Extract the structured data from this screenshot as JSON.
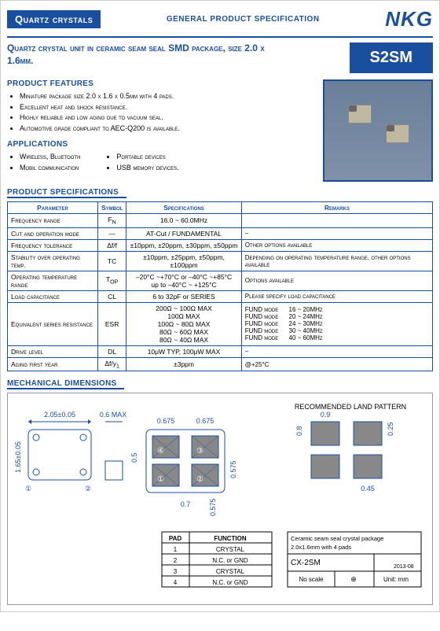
{
  "header": {
    "left": "Quartz crystals",
    "mid": "GENERAL PRODUCT SPECIFICATION",
    "brand": "NKG"
  },
  "title": "Quartz crystal unit in ceramic seam seal SMD package, size 2.0 x 1.6mm.",
  "partcode": "S2SM",
  "features_h": "PRODUCT FEATURES",
  "features": [
    "Miniature  package size 2.0 x 1.6 x 0.5mm with 4 pads.",
    "Excellent heat and shock resistance.",
    "Highly reliable and low aging due to vacuum seal.",
    "Automotive grade compliant to AEC-Q200 is available."
  ],
  "apps_h": "APPLICATIONS",
  "apps_col1": [
    "Wireless, Bluetooth",
    "Mobil communication"
  ],
  "apps_col2": [
    "Portable devices",
    "USB memory devices."
  ],
  "spec_h": "PRODUCT SPECIFICATIONS",
  "spec_cols": {
    "p": "Parameter",
    "s": "Symbol",
    "v": "Specifications",
    "r": "Remarks"
  },
  "spec_rows": [
    {
      "p": "Frequency range",
      "s": "F<sub>N</sub>",
      "v": "16.0 ~ 60.0MHz",
      "r": ""
    },
    {
      "p": "Cut and operation mode",
      "s": "—",
      "v": "AT-Cut / FUNDAMENTAL",
      "r": "–"
    },
    {
      "p": "Frequency tolerance",
      "s": "Δf/f",
      "v": "±10ppm, ±20ppm, ±30ppm, ±50ppm",
      "r": "Other options available"
    },
    {
      "p": "Stability over operating temp.",
      "s": "TC",
      "v": "±10ppm, ±25ppm, ±50ppm, ±100ppm",
      "r": "Depending on operating temperature range, other options available"
    },
    {
      "p": "Operating temperature range",
      "s": "T<sub>OP</sub>",
      "v": "–20°C ~+70°C  or  –40°C ~+85°C<br>up to –40°C ~ +125°C",
      "r": "Options available"
    },
    {
      "p": "Load capacitance",
      "s": "CL",
      "v": "6 to 32pF or SERIES",
      "r": "Please specify load capacitance"
    },
    {
      "p": "Equivalent series resistance",
      "s": "ESR",
      "v": "200Ω ~ 100Ω MAX<br>100Ω MAX<br>100Ω ~ 80Ω MAX<br>80Ω ~ 60Ω MAX<br>80Ω ~ 40Ω MAX",
      "r": "FUND mode &nbsp;&nbsp;&nbsp;&nbsp; 16 ~ 20MHz<br>FUND mode &nbsp;&nbsp;&nbsp;&nbsp; 20 ~ 24MHz<br>FUND mode &nbsp;&nbsp;&nbsp;&nbsp; 24 ~ 30MHz<br>FUND mode &nbsp;&nbsp;&nbsp;&nbsp; 30 ~ 40MHz<br>FUND mode &nbsp;&nbsp;&nbsp;&nbsp; 40 ~ 60MHz"
    },
    {
      "p": "Drive level",
      "s": "DL",
      "v": "10μW TYP,  100μW MAX",
      "r": "–"
    },
    {
      "p": "Aging first year",
      "s": "Δf/y<sub>1</sub>",
      "v": "±3ppm",
      "r": "@+25°C"
    }
  ],
  "mech_h": "MECHANICAL DIMENSIONS",
  "mech": {
    "rec_label": "RECOMMENDED LAND PATTERN",
    "dims": {
      "w": "2.05±0.05",
      "h": "1.65±0.05",
      "th": "0.6 MAX",
      "pad_w": "0.675",
      "pad_gap": "0.7",
      "pad_h": "0.575",
      "pad_vgap": "0.5",
      "lp_w": "0.9",
      "lp_h": "0.8",
      "lp_sx": "0.45",
      "lp_sy": "0.25"
    },
    "pad_table": {
      "cols": [
        "PAD",
        "FUNCTION"
      ],
      "rows": [
        [
          "1",
          "CRYSTAL"
        ],
        [
          "2",
          "N.C. or GND"
        ],
        [
          "3",
          "CRYSTAL"
        ],
        [
          "4",
          "N.C. or GND"
        ]
      ]
    },
    "box": {
      "l1": "Ceramic seam seal crystal package",
      "l2": "2.0x1.6mm with 4 pads",
      "code": "CX-2SM",
      "date": "2013-08",
      "scale": "No scale",
      "unit": "Unit: mm"
    }
  },
  "colors": {
    "blue": "#1a4fa0",
    "border": "#999"
  }
}
